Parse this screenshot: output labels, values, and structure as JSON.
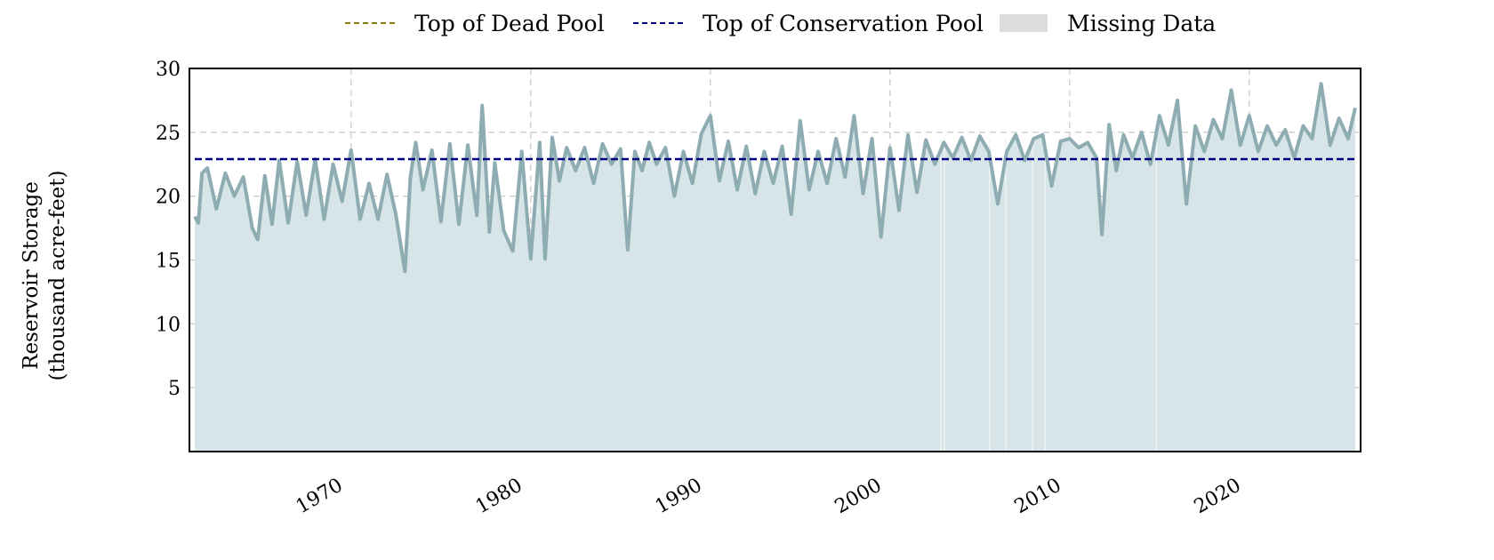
{
  "legend": {
    "dead_pool_label": "Top of Dead Pool",
    "conservation_pool_label": "Top of Conservation Pool",
    "missing_data_label": "Missing Data"
  },
  "colors": {
    "dead_pool": "#8b7d0a",
    "conservation_pool": "#00007f",
    "missing_data": "#dcdcdc",
    "storage_line": "#8eadb3",
    "storage_fill": "#d7e5e8",
    "grid": "#cccccc"
  },
  "chart_data": {
    "type": "area",
    "ylabel_line1": "Reservoir Storage",
    "ylabel_line2": "(thousand acre-feet)",
    "xlim": [
      1961.0,
      2026.2
    ],
    "ylim": [
      0,
      30
    ],
    "x_ticks": [
      1970,
      1980,
      1990,
      2000,
      2010,
      2020
    ],
    "x_tick_labels": [
      "1970",
      "1980",
      "1990",
      "2000",
      "2010",
      "2020"
    ],
    "y_ticks": [
      5,
      10,
      15,
      20,
      25,
      30
    ],
    "y_tick_labels": [
      "5",
      "10",
      "15",
      "20",
      "25",
      "30"
    ],
    "grid": true,
    "legend_position": "top-center",
    "conservation_pool_level": 22.9,
    "missing_data_years": [
      2002.8,
      2003.0,
      2005.5,
      2006.4,
      2007.9,
      2008.6,
      2014.8
    ],
    "series": [
      {
        "name": "Reservoir Storage",
        "x": [
          1961.3,
          1961.5,
          1961.7,
          1962.0,
          1962.5,
          1963.0,
          1963.5,
          1964.0,
          1964.5,
          1964.8,
          1965.2,
          1965.6,
          1966.0,
          1966.5,
          1967.0,
          1967.5,
          1968.0,
          1968.5,
          1969.0,
          1969.5,
          1970.0,
          1970.5,
          1971.0,
          1971.5,
          1972.0,
          1972.5,
          1973.0,
          1973.3,
          1973.6,
          1974.0,
          1974.5,
          1975.0,
          1975.5,
          1976.0,
          1976.5,
          1977.0,
          1977.3,
          1977.7,
          1978.0,
          1978.5,
          1979.0,
          1979.5,
          1980.0,
          1980.5,
          1980.8,
          1981.2,
          1981.6,
          1982.0,
          1982.5,
          1983.0,
          1983.5,
          1984.0,
          1984.5,
          1985.0,
          1985.4,
          1985.8,
          1986.2,
          1986.6,
          1987.0,
          1987.5,
          1988.0,
          1988.5,
          1989.0,
          1989.5,
          1990.0,
          1990.5,
          1991.0,
          1991.5,
          1992.0,
          1992.5,
          1993.0,
          1993.5,
          1994.0,
          1994.5,
          1995.0,
          1995.5,
          1996.0,
          1996.5,
          1997.0,
          1997.5,
          1998.0,
          1998.5,
          1999.0,
          1999.5,
          2000.0,
          2000.5,
          2001.0,
          2001.5,
          2002.0,
          2002.5,
          2003.0,
          2003.5,
          2004.0,
          2004.5,
          2005.0,
          2005.5,
          2006.0,
          2006.5,
          2007.0,
          2007.5,
          2008.0,
          2008.5,
          2009.0,
          2009.5,
          2010.0,
          2010.5,
          2011.0,
          2011.5,
          2011.8,
          2012.2,
          2012.6,
          2013.0,
          2013.5,
          2014.0,
          2014.5,
          2015.0,
          2015.5,
          2016.0,
          2016.5,
          2017.0,
          2017.5,
          2018.0,
          2018.5,
          2019.0,
          2019.5,
          2020.0,
          2020.5,
          2021.0,
          2021.5,
          2022.0,
          2022.5,
          2023.0,
          2023.5,
          2024.0,
          2024.5,
          2025.0,
          2025.5,
          2025.9
        ],
        "values": [
          18.4,
          17.9,
          21.8,
          22.2,
          19.0,
          21.8,
          20.0,
          21.5,
          17.5,
          16.6,
          21.6,
          17.8,
          22.8,
          17.9,
          22.7,
          18.5,
          22.9,
          18.2,
          22.5,
          19.6,
          23.6,
          18.2,
          21.0,
          18.2,
          21.7,
          18.5,
          14.1,
          21.5,
          24.2,
          20.5,
          23.6,
          18.0,
          24.1,
          17.8,
          24.0,
          18.5,
          27.1,
          17.2,
          22.6,
          17.3,
          15.7,
          23.5,
          15.1,
          24.2,
          15.1,
          24.6,
          21.2,
          23.8,
          22.0,
          23.8,
          21.0,
          24.1,
          22.5,
          23.7,
          15.8,
          23.5,
          22.0,
          24.2,
          22.5,
          23.8,
          20.0,
          23.5,
          21.0,
          24.9,
          26.3,
          21.2,
          24.3,
          20.5,
          23.9,
          20.2,
          23.5,
          21.0,
          23.9,
          18.6,
          25.9,
          20.5,
          23.5,
          21.0,
          24.5,
          21.5,
          26.3,
          20.2,
          24.5,
          16.8,
          23.8,
          18.9,
          24.8,
          20.3,
          24.4,
          22.5,
          24.2,
          23.0,
          24.6,
          22.8,
          24.7,
          23.5,
          19.4,
          23.5,
          24.8,
          22.8,
          24.5,
          24.8,
          20.8,
          24.3,
          24.5,
          23.8,
          24.2,
          23.0,
          17.0,
          25.6,
          22.0,
          24.8,
          23.0,
          25.0,
          22.5,
          26.3,
          24.0,
          27.5,
          19.4,
          25.5,
          23.5,
          26.0,
          24.5,
          28.3,
          24.0,
          26.3,
          23.5,
          25.5,
          24.0,
          25.2,
          23.0,
          25.5,
          24.5,
          28.8,
          24.0,
          26.1,
          24.5,
          26.9
        ]
      }
    ]
  }
}
